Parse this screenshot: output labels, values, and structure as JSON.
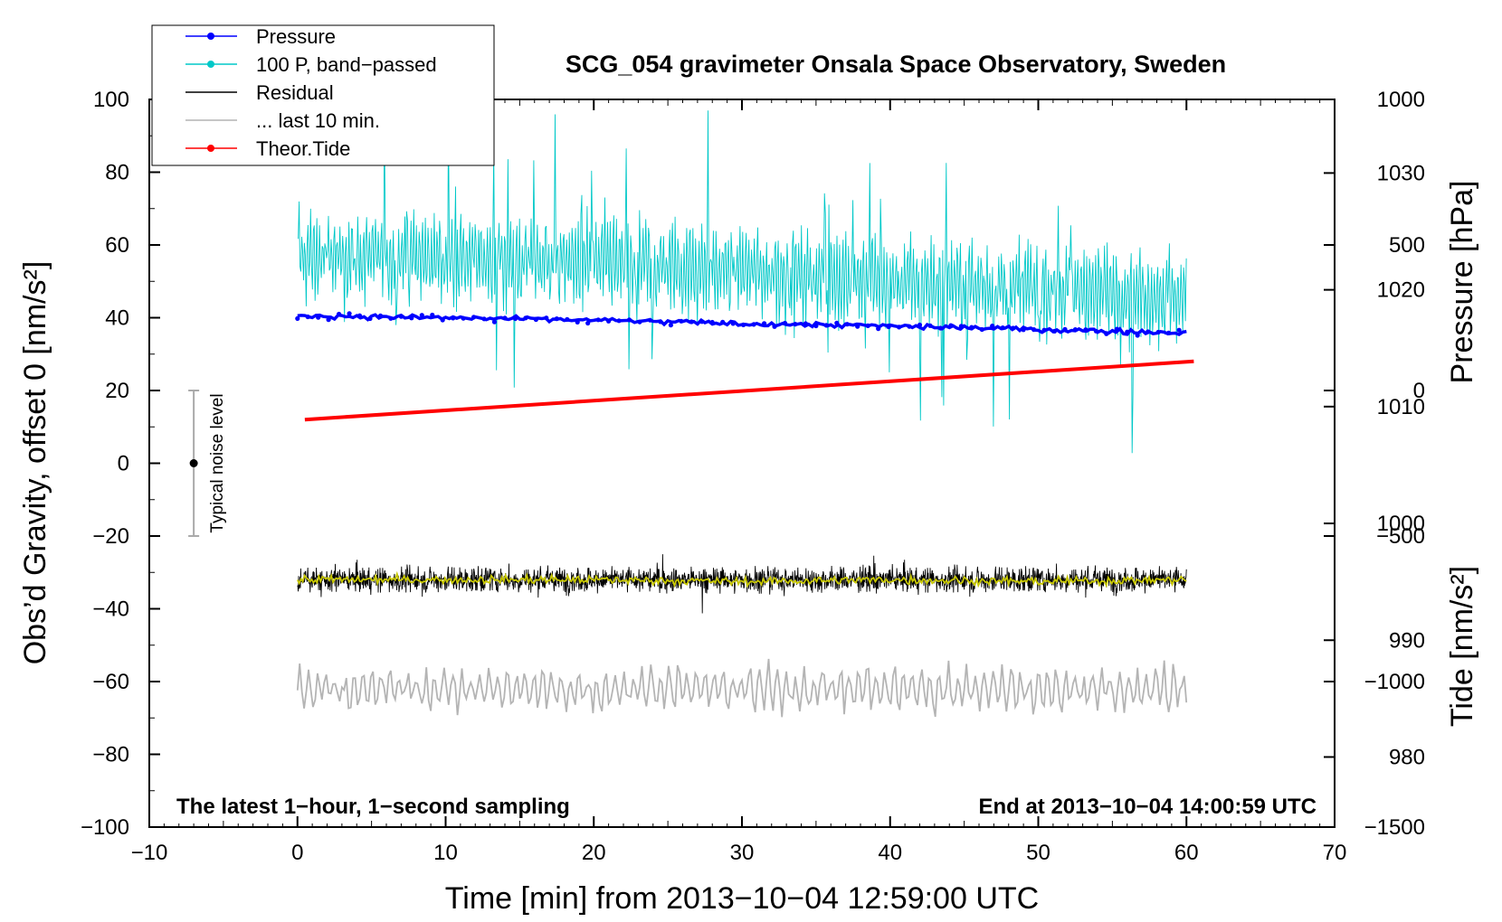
{
  "chart_data": {
    "type": "line",
    "title": "SCG_054 gravimeter Onsala Space Observatory, Sweden",
    "xlabel": "Time [min] from 2013−10−04 12:59:00 UTC",
    "ylabel_left": "Obs’d Gravity, offset 0 [nm/s²]",
    "ylabel_pressure": "Pressure [hPa]",
    "ylabel_tide": "Tide [nm/s²]",
    "note_left": "The latest 1−hour, 1−second sampling",
    "note_right": "End at 2013−10−04 14:00:59 UTC",
    "noise_label": "Typical noise level",
    "xlim": [
      -10,
      70
    ],
    "ylim": [
      -100,
      100
    ],
    "x_ticks": [
      -10,
      0,
      10,
      20,
      30,
      40,
      50,
      60,
      70
    ],
    "x_tick_labels": [
      "−10",
      "0",
      "10",
      "20",
      "30",
      "40",
      "50",
      "60",
      "70"
    ],
    "y_ticks": [
      100,
      80,
      60,
      40,
      20,
      0,
      -20,
      -40,
      -60,
      -80,
      -100
    ],
    "y_tick_labels": [
      "100",
      "80",
      "60",
      "40",
      "20",
      "0",
      "−20",
      "−40",
      "−60",
      "−80",
      "−100"
    ],
    "pressure_axis": {
      "ticks": [
        1030,
        1020,
        1010,
        1000,
        990,
        980
      ],
      "tick_labels": [
        "1030",
        "1020",
        "1010",
        "1000",
        "990",
        "980"
      ],
      "range": [
        974,
        1036.3
      ]
    },
    "tide_axis": {
      "ticks": [
        1000,
        500,
        0,
        -500,
        -1000,
        -1500
      ],
      "tick_labels": [
        "1000",
        "500",
        "0",
        "−500",
        "−1000",
        "−1500"
      ],
      "range": [
        -1500,
        1000
      ]
    },
    "noise_bar": {
      "x": -7,
      "center": 0,
      "low": -20,
      "high": 20
    },
    "legend": [
      {
        "name": "Pressure",
        "color": "#0000ff",
        "marker": true
      },
      {
        "name": "100 P, band−passed",
        "color": "#00c8c8",
        "marker": true
      },
      {
        "name": "Residual",
        "color": "#000000",
        "marker": false
      },
      {
        "name": "... last 10 min.",
        "color": "#b4b4b4",
        "marker": false
      },
      {
        "name": "Theor.Tide",
        "color": "#ff0000",
        "marker": true
      }
    ],
    "series": [
      {
        "name": "Pressure",
        "color": "#0000ff",
        "axis": "pressure",
        "x": [
          0,
          10,
          20,
          30,
          40,
          50,
          60
        ],
        "y": [
          1017.8,
          1017.6,
          1017.4,
          1017.1,
          1016.9,
          1016.6,
          1016.3
        ]
      },
      {
        "name": "100 P, band−passed",
        "color": "#00c8c8",
        "axis": "left",
        "x": [
          0,
          10,
          20,
          30,
          40,
          50,
          60
        ],
        "y": [
          57,
          56,
          55,
          53,
          50,
          48,
          46
        ]
      },
      {
        "name": "Residual",
        "color": "#000000",
        "axis": "left",
        "x": [
          0,
          10,
          20,
          30,
          40,
          50,
          60
        ],
        "y": [
          -32,
          -32,
          -32,
          -32,
          -32,
          -32,
          -32
        ]
      },
      {
        "name": "Residual smoothed",
        "color": "#c8c800",
        "axis": "left",
        "x": [
          0,
          10,
          20,
          30,
          40,
          50,
          60
        ],
        "y": [
          -32,
          -32,
          -32,
          -32.5,
          -32,
          -32.5,
          -32
        ]
      },
      {
        "name": "... last 10 min.",
        "color": "#b4b4b4",
        "axis": "left",
        "x": [
          0,
          10,
          20,
          30,
          40,
          50,
          60
        ],
        "y": [
          -62,
          -62,
          -62,
          -62,
          -62,
          -62,
          -62
        ]
      },
      {
        "name": "Theor.Tide",
        "color": "#ff0000",
        "axis": "tide",
        "x": [
          0.5,
          60.5
        ],
        "y": [
          -100,
          100
        ]
      }
    ]
  }
}
